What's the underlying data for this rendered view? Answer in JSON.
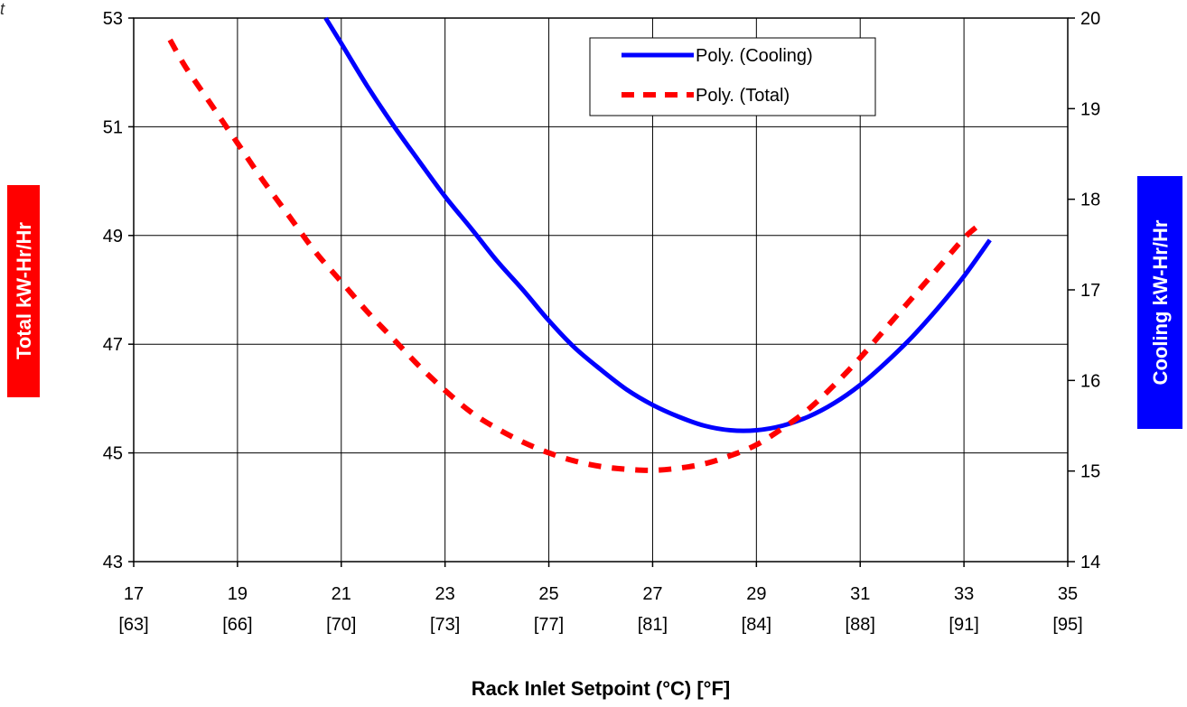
{
  "corner_text": "t",
  "chart_data": {
    "type": "line",
    "xlabel": "Rack Inlet Setpoint (°C)  [°F]",
    "xlim": [
      17,
      35
    ],
    "x_ticks": [
      {
        "c": "17",
        "f": "[63]"
      },
      {
        "c": "19",
        "f": "[66]"
      },
      {
        "c": "21",
        "f": "[70]"
      },
      {
        "c": "23",
        "f": "[73]"
      },
      {
        "c": "25",
        "f": "[77]"
      },
      {
        "c": "27",
        "f": "[81]"
      },
      {
        "c": "29",
        "f": "[84]"
      },
      {
        "c": "31",
        "f": "[88]"
      },
      {
        "c": "33",
        "f": "[91]"
      },
      {
        "c": "35",
        "f": "[95]"
      }
    ],
    "y_left": {
      "label": "Total kW-Hr/Hr",
      "ylim": [
        43,
        53
      ],
      "ticks": [
        "43",
        "45",
        "47",
        "49",
        "51",
        "53"
      ],
      "label_bg": "#ff0000"
    },
    "y_right": {
      "label": "Cooling kW-Hr/Hr",
      "ylim": [
        14,
        20
      ],
      "ticks": [
        "14",
        "15",
        "16",
        "17",
        "18",
        "19",
        "20"
      ],
      "label_bg": "#0000ff"
    },
    "grid": true,
    "legend_position": "top-center",
    "series": [
      {
        "name": "Poly. (Cooling)",
        "axis": "right",
        "color": "#0000ff",
        "style": "solid",
        "x": [
          20.7,
          21,
          21.5,
          22,
          22.5,
          23,
          23.5,
          24,
          24.5,
          25,
          25.5,
          26,
          26.5,
          27,
          27.5,
          28,
          28.5,
          29,
          29.5,
          30,
          30.5,
          31,
          31.5,
          32,
          32.5,
          33,
          33.5
        ],
        "y": [
          20.0,
          19.72,
          19.25,
          18.82,
          18.42,
          18.03,
          17.68,
          17.32,
          17.0,
          16.66,
          16.36,
          16.12,
          15.9,
          15.73,
          15.6,
          15.5,
          15.45,
          15.45,
          15.5,
          15.6,
          15.75,
          15.95,
          16.2,
          16.48,
          16.8,
          17.15,
          17.55
        ]
      },
      {
        "name": "Poly. (Total)",
        "axis": "left",
        "color": "#ff0000",
        "style": "dashed",
        "x": [
          17.7,
          18,
          18.5,
          19,
          19.5,
          20,
          20.5,
          21,
          21.5,
          22,
          22.5,
          23,
          23.5,
          24,
          24.5,
          25,
          25.5,
          26,
          26.5,
          27,
          27.5,
          28,
          28.5,
          29,
          29.5,
          30,
          30.5,
          31,
          31.5,
          32,
          32.5,
          33,
          33.3
        ],
        "y": [
          52.6,
          52.1,
          51.4,
          50.7,
          50.0,
          49.35,
          48.7,
          48.15,
          47.6,
          47.1,
          46.6,
          46.15,
          45.75,
          45.45,
          45.2,
          45.0,
          44.85,
          44.75,
          44.7,
          44.68,
          44.72,
          44.8,
          44.95,
          45.15,
          45.45,
          45.8,
          46.25,
          46.75,
          47.3,
          47.85,
          48.4,
          48.95,
          49.2
        ]
      }
    ]
  }
}
